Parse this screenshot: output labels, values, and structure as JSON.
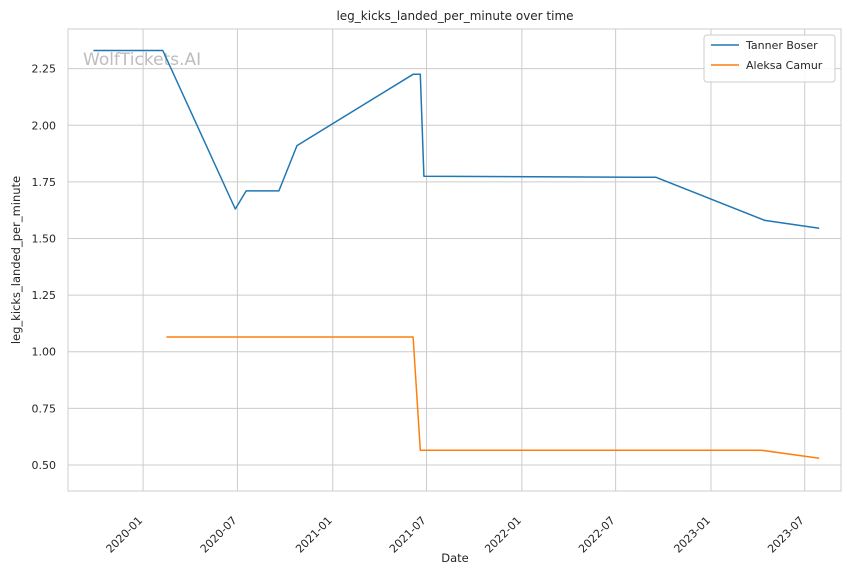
{
  "chart_data": {
    "type": "line",
    "title": "leg_kicks_landed_per_minute over time",
    "xlabel": "Date",
    "ylabel": "leg_kicks_landed_per_minute",
    "watermark": "WolfTickets.AI",
    "x_ticks": [
      "2020-01",
      "2020-07",
      "2021-01",
      "2021-07",
      "2022-01",
      "2022-07",
      "2023-01",
      "2023-07"
    ],
    "x_tick_dates": [
      "2020-01-01",
      "2020-07-01",
      "2021-01-01",
      "2021-07-01",
      "2022-01-01",
      "2022-07-01",
      "2023-01-01",
      "2023-07-01"
    ],
    "xlim": [
      "2019-08-09",
      "2023-09-09"
    ],
    "y_ticks": [
      "0.50",
      "0.75",
      "1.00",
      "1.25",
      "1.50",
      "1.75",
      "2.00",
      "2.25"
    ],
    "ylim": [
      0.385,
      2.425
    ],
    "grid": true,
    "legend_position": "top-right",
    "series": [
      {
        "name": "Tanner Boser",
        "color": "#1f77b4",
        "points": [
          [
            "2019-09-27",
            2.33
          ],
          [
            "2020-02-08",
            2.33
          ],
          [
            "2020-06-27",
            1.63
          ],
          [
            "2020-07-18",
            1.71
          ],
          [
            "2020-09-19",
            1.71
          ],
          [
            "2020-10-24",
            1.91
          ],
          [
            "2021-06-05",
            2.225
          ],
          [
            "2021-06-19",
            2.225
          ],
          [
            "2021-06-26",
            1.775
          ],
          [
            "2022-09-17",
            1.77
          ],
          [
            "2023-04-15",
            1.58
          ],
          [
            "2023-07-29",
            1.545
          ]
        ]
      },
      {
        "name": "Aleksa Camur",
        "color": "#ff7f0e",
        "points": [
          [
            "2020-02-15",
            1.065
          ],
          [
            "2021-06-05",
            1.065
          ],
          [
            "2021-06-19",
            0.565
          ],
          [
            "2023-04-08",
            0.565
          ],
          [
            "2023-07-29",
            0.53
          ]
        ]
      }
    ]
  }
}
